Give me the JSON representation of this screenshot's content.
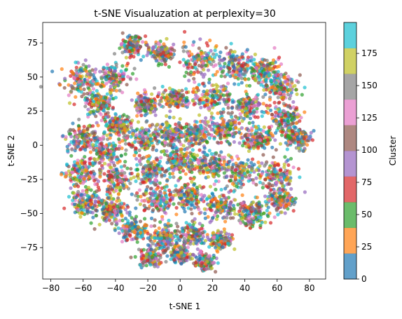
{
  "chart_data": {
    "type": "scatter",
    "title": "t-SNE Visualuzation at perplexity=30",
    "xlabel": "t-SNE 1",
    "ylabel": "t-SNE 2",
    "xlim": [
      -85,
      90
    ],
    "ylim": [
      -98,
      90
    ],
    "xticks": [
      "-80",
      "-60",
      "-40",
      "-20",
      "0",
      "20",
      "40",
      "60",
      "80"
    ],
    "yticks": [
      "-75",
      "-50",
      "-25",
      "0",
      "25",
      "50",
      "75"
    ],
    "grid": false,
    "colorbar": {
      "label": "Cluster",
      "range": [
        0,
        199
      ],
      "ticks": [
        "0",
        "25",
        "50",
        "75",
        "100",
        "125",
        "150",
        "175"
      ],
      "colors": [
        "#1f77b4",
        "#ff7f0e",
        "#2ca02c",
        "#d62728",
        "#9467bd",
        "#8c564b",
        "#e377c2",
        "#7f7f7f",
        "#bcbd22",
        "#17becf"
      ]
    },
    "point_alpha": 0.7,
    "clusters": [
      {
        "x": -30,
        "y": 73,
        "spread": 6
      },
      {
        "x": -12,
        "y": 68,
        "spread": 6
      },
      {
        "x": -62,
        "y": 48,
        "spread": 10
      },
      {
        "x": -42,
        "y": 50,
        "spread": 9
      },
      {
        "x": -50,
        "y": 30,
        "spread": 8
      },
      {
        "x": 12,
        "y": 62,
        "spread": 10
      },
      {
        "x": 35,
        "y": 58,
        "spread": 10
      },
      {
        "x": 52,
        "y": 55,
        "spread": 8
      },
      {
        "x": 62,
        "y": 42,
        "spread": 8
      },
      {
        "x": -20,
        "y": 30,
        "spread": 7
      },
      {
        "x": -2,
        "y": 34,
        "spread": 7
      },
      {
        "x": 20,
        "y": 35,
        "spread": 9
      },
      {
        "x": 42,
        "y": 28,
        "spread": 9
      },
      {
        "x": 65,
        "y": 20,
        "spread": 8
      },
      {
        "x": -38,
        "y": 15,
        "spread": 6
      },
      {
        "x": -60,
        "y": 5,
        "spread": 9
      },
      {
        "x": -45,
        "y": -5,
        "spread": 9
      },
      {
        "x": -22,
        "y": 5,
        "spread": 9
      },
      {
        "x": -5,
        "y": 8,
        "spread": 8
      },
      {
        "x": 10,
        "y": 8,
        "spread": 8
      },
      {
        "x": 28,
        "y": 12,
        "spread": 8
      },
      {
        "x": 48,
        "y": 5,
        "spread": 8
      },
      {
        "x": 72,
        "y": 5,
        "spread": 7
      },
      {
        "x": -62,
        "y": -20,
        "spread": 8
      },
      {
        "x": -40,
        "y": -25,
        "spread": 9
      },
      {
        "x": -18,
        "y": -18,
        "spread": 9
      },
      {
        "x": 0,
        "y": -12,
        "spread": 8
      },
      {
        "x": 18,
        "y": -15,
        "spread": 9
      },
      {
        "x": 38,
        "y": -20,
        "spread": 9
      },
      {
        "x": 60,
        "y": -22,
        "spread": 9
      },
      {
        "x": -58,
        "y": -42,
        "spread": 8
      },
      {
        "x": -42,
        "y": -48,
        "spread": 8
      },
      {
        "x": -15,
        "y": -40,
        "spread": 9
      },
      {
        "x": 5,
        "y": -38,
        "spread": 8
      },
      {
        "x": 25,
        "y": -45,
        "spread": 8
      },
      {
        "x": 45,
        "y": -50,
        "spread": 8
      },
      {
        "x": 62,
        "y": -40,
        "spread": 7
      },
      {
        "x": -28,
        "y": -62,
        "spread": 7
      },
      {
        "x": -10,
        "y": -68,
        "spread": 7
      },
      {
        "x": 8,
        "y": -65,
        "spread": 7
      },
      {
        "x": -18,
        "y": -82,
        "spread": 6
      },
      {
        "x": 0,
        "y": -80,
        "spread": 5
      },
      {
        "x": 15,
        "y": -85,
        "spread": 5
      },
      {
        "x": 25,
        "y": -70,
        "spread": 6
      }
    ]
  }
}
